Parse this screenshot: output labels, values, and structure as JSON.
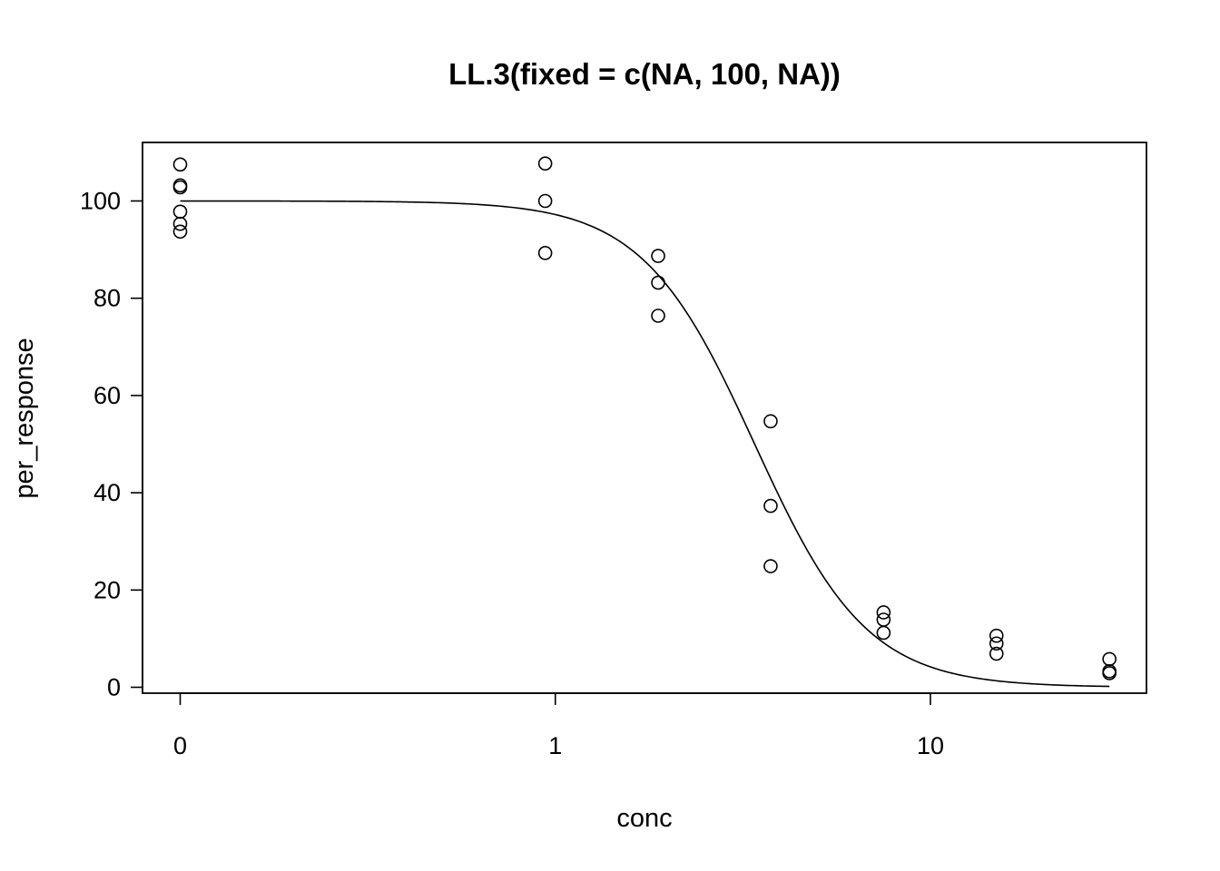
{
  "chart_data": {
    "type": "scatter",
    "title": "LL.3(fixed = c(NA, 100, NA))",
    "xlabel": "conc",
    "ylabel": "per_response",
    "x_scale": "log",
    "x_ticks": [
      {
        "value": 0,
        "label": "0"
      },
      {
        "value": 1,
        "label": "1"
      },
      {
        "value": 10,
        "label": "10"
      }
    ],
    "y_ticks": [
      0,
      20,
      40,
      60,
      80,
      100
    ],
    "ylim": [
      -1.5,
      111
    ],
    "grid": false,
    "points": [
      {
        "x": 0,
        "y": 107.5
      },
      {
        "x": 0,
        "y": 103.2
      },
      {
        "x": 0,
        "y": 102.8
      },
      {
        "x": 0,
        "y": 97.8
      },
      {
        "x": 0,
        "y": 95.3
      },
      {
        "x": 0,
        "y": 93.7
      },
      {
        "x": 0.94,
        "y": 107.7
      },
      {
        "x": 0.94,
        "y": 100.0
      },
      {
        "x": 0.94,
        "y": 89.3
      },
      {
        "x": 1.88,
        "y": 88.7
      },
      {
        "x": 1.88,
        "y": 83.2
      },
      {
        "x": 1.88,
        "y": 76.4
      },
      {
        "x": 3.75,
        "y": 54.7
      },
      {
        "x": 3.75,
        "y": 37.3
      },
      {
        "x": 3.75,
        "y": 24.9
      },
      {
        "x": 7.5,
        "y": 15.4
      },
      {
        "x": 7.5,
        "y": 13.9
      },
      {
        "x": 7.5,
        "y": 11.2
      },
      {
        "x": 15,
        "y": 10.6
      },
      {
        "x": 15,
        "y": 9.0
      },
      {
        "x": 15,
        "y": 6.9
      },
      {
        "x": 30,
        "y": 5.8
      },
      {
        "x": 30,
        "y": 3.3
      },
      {
        "x": 30,
        "y": 2.9
      }
    ],
    "fitted_curve": {
      "model": "LL.3",
      "upper": 100,
      "slope": 2.9,
      "ed50": 3.4,
      "x_from": 0,
      "x_to": 30
    }
  }
}
